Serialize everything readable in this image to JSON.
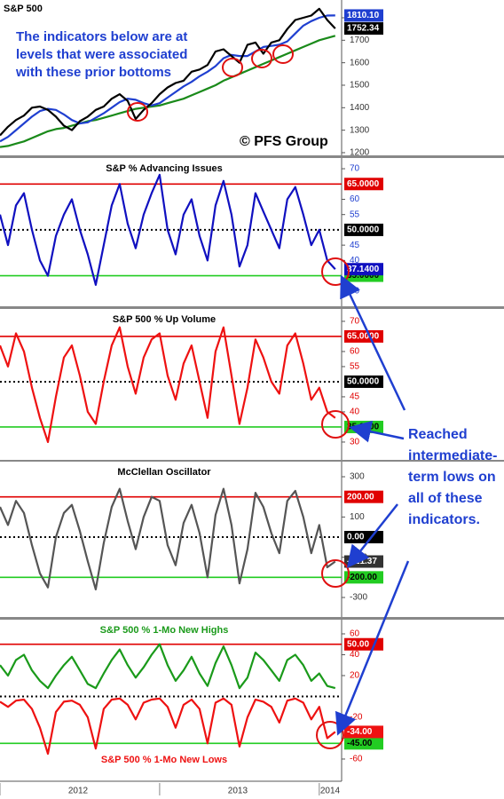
{
  "chart_data": [
    {
      "type": "line",
      "title": "S&P 500",
      "annotation": [
        "The indicators below are at",
        "levels that were associated",
        "with these prior bottoms"
      ],
      "credit": "© PFS Group",
      "axis_color": "#333333",
      "xlim": [
        2012,
        2014.14
      ],
      "ylim": [
        1188,
        1879
      ],
      "yticks": [
        1200,
        1300,
        1400,
        1500,
        1600,
        1700,
        1800
      ],
      "x": [
        2012,
        2012.05,
        2012.1,
        2012.15,
        2012.2,
        2012.25,
        2012.3,
        2012.35,
        2012.4,
        2012.45,
        2012.5,
        2012.55,
        2012.6,
        2012.65,
        2012.7,
        2012.75,
        2012.8,
        2012.85,
        2012.9,
        2012.95,
        2013,
        2013.05,
        2013.1,
        2013.15,
        2013.2,
        2013.25,
        2013.3,
        2013.35,
        2013.4,
        2013.45,
        2013.5,
        2013.55,
        2013.6,
        2013.65,
        2013.7,
        2013.75,
        2013.8,
        2013.85,
        2013.9,
        2013.95,
        2014,
        2014.05,
        2014.1
      ],
      "series": [
        {
          "color": "#1a8a1a",
          "values": [
            1225,
            1230,
            1240,
            1250,
            1265,
            1280,
            1295,
            1305,
            1310,
            1320,
            1330,
            1340,
            1345,
            1355,
            1365,
            1375,
            1385,
            1395,
            1400,
            1405,
            1410,
            1420,
            1430,
            1440,
            1455,
            1470,
            1485,
            1500,
            1520,
            1535,
            1550,
            1565,
            1580,
            1595,
            1610,
            1625,
            1640,
            1655,
            1670,
            1685,
            1700,
            1710,
            1720
          ]
        },
        {
          "color": "#1f3fd0",
          "values": [
            1250,
            1270,
            1300,
            1330,
            1360,
            1385,
            1395,
            1390,
            1370,
            1345,
            1330,
            1335,
            1355,
            1375,
            1400,
            1425,
            1440,
            1435,
            1420,
            1410,
            1420,
            1445,
            1470,
            1495,
            1515,
            1540,
            1560,
            1585,
            1620,
            1635,
            1630,
            1630,
            1650,
            1670,
            1675,
            1680,
            1695,
            1730,
            1765,
            1785,
            1800,
            1810,
            1810.1
          ],
          "end_label": "1810.10"
        },
        {
          "color": "#000000",
          "values": [
            1277,
            1315,
            1345,
            1365,
            1400,
            1405,
            1390,
            1360,
            1320,
            1300,
            1340,
            1360,
            1390,
            1405,
            1440,
            1460,
            1430,
            1350,
            1390,
            1420,
            1460,
            1490,
            1510,
            1520,
            1560,
            1570,
            1590,
            1650,
            1660,
            1630,
            1600,
            1680,
            1690,
            1640,
            1690,
            1700,
            1750,
            1790,
            1800,
            1810,
            1840,
            1790,
            1752.34
          ],
          "end_label": "1752.34"
        }
      ]
    },
    {
      "type": "line",
      "title": "S&P % Advancing Issues",
      "axis_color": "#1f3fd0",
      "xlim": [
        2012,
        2014.14
      ],
      "ylim": [
        25,
        73.5
      ],
      "yticks": [
        30,
        40,
        45,
        55,
        60,
        70
      ],
      "reference_lines": [
        {
          "value": 65,
          "label": "65.0000",
          "color": "#e00000",
          "style": "solid"
        },
        {
          "value": 50,
          "label": "50.0000",
          "color": "#000000",
          "style": "dotted"
        },
        {
          "value": 35,
          "label": "35.0000",
          "color": "#22cc22",
          "style": "solid"
        }
      ],
      "x": [
        2012,
        2012.05,
        2012.1,
        2012.15,
        2012.2,
        2012.25,
        2012.3,
        2012.35,
        2012.4,
        2012.45,
        2012.5,
        2012.55,
        2012.6,
        2012.65,
        2012.7,
        2012.75,
        2012.8,
        2012.85,
        2012.9,
        2012.95,
        2013,
        2013.05,
        2013.1,
        2013.15,
        2013.2,
        2013.25,
        2013.3,
        2013.35,
        2013.4,
        2013.45,
        2013.5,
        2013.55,
        2013.6,
        2013.65,
        2013.7,
        2013.75,
        2013.8,
        2013.85,
        2013.9,
        2013.95,
        2014,
        2014.05,
        2014.1
      ],
      "series": [
        {
          "color": "#1010c0",
          "values": [
            55,
            45,
            58,
            62,
            50,
            40,
            35,
            48,
            55,
            60,
            50,
            42,
            32,
            45,
            58,
            65,
            52,
            44,
            55,
            62,
            68,
            50,
            42,
            55,
            60,
            48,
            40,
            58,
            66,
            55,
            38,
            45,
            62,
            56,
            50,
            44,
            60,
            64,
            55,
            45,
            50,
            40,
            37.14
          ],
          "end_label": "37.1400"
        }
      ]
    },
    {
      "type": "line",
      "title": "S&P 500 % Up Volume",
      "axis_color": "#e00000",
      "xlim": [
        2012,
        2014.14
      ],
      "ylim": [
        24.1,
        74.1
      ],
      "yticks": [
        30,
        40,
        45,
        55,
        60,
        70
      ],
      "reference_lines": [
        {
          "value": 65,
          "label": "65.0000",
          "color": "#e00000",
          "style": "solid"
        },
        {
          "value": 50,
          "label": "50.0000",
          "color": "#000000",
          "style": "dotted"
        },
        {
          "value": 35,
          "label": "35.0000",
          "color": "#22cc22",
          "style": "solid"
        }
      ],
      "x": [
        2012,
        2012.05,
        2012.1,
        2012.15,
        2012.2,
        2012.25,
        2012.3,
        2012.35,
        2012.4,
        2012.45,
        2012.5,
        2012.55,
        2012.6,
        2012.65,
        2012.7,
        2012.75,
        2012.8,
        2012.85,
        2012.9,
        2012.95,
        2013,
        2013.05,
        2013.1,
        2013.15,
        2013.2,
        2013.25,
        2013.3,
        2013.35,
        2013.4,
        2013.45,
        2013.5,
        2013.55,
        2013.6,
        2013.65,
        2013.7,
        2013.75,
        2013.8,
        2013.85,
        2013.9,
        2013.95,
        2014,
        2014.05,
        2014.1
      ],
      "series": [
        {
          "color": "#ee1111",
          "values": [
            62,
            55,
            66,
            60,
            48,
            38,
            30,
            45,
            58,
            62,
            52,
            40,
            36,
            50,
            62,
            68,
            55,
            46,
            58,
            64,
            66,
            52,
            44,
            56,
            62,
            50,
            38,
            60,
            68,
            52,
            36,
            48,
            64,
            58,
            50,
            46,
            62,
            66,
            56,
            44,
            48,
            40,
            38
          ]
        }
      ]
    },
    {
      "type": "line",
      "title": "McClellan Oscillator",
      "axis_color": "#333333",
      "xlim": [
        2012,
        2014.14
      ],
      "ylim": [
        -397,
        375
      ],
      "yticks": [
        300,
        100,
        -100,
        -300
      ],
      "reference_lines": [
        {
          "value": 200,
          "label": "200.00",
          "color": "#e00000",
          "style": "solid"
        },
        {
          "value": 0,
          "label": "0.00",
          "color": "#000000",
          "style": "dotted"
        },
        {
          "value": -200,
          "label": "-200.00",
          "color": "#22cc22",
          "style": "solid"
        }
      ],
      "x": [
        2012,
        2012.05,
        2012.1,
        2012.15,
        2012.2,
        2012.25,
        2012.3,
        2012.35,
        2012.4,
        2012.45,
        2012.5,
        2012.55,
        2012.6,
        2012.65,
        2012.7,
        2012.75,
        2012.8,
        2012.85,
        2012.9,
        2012.95,
        2013,
        2013.05,
        2013.1,
        2013.15,
        2013.2,
        2013.25,
        2013.3,
        2013.35,
        2013.4,
        2013.45,
        2013.5,
        2013.55,
        2013.6,
        2013.65,
        2013.7,
        2013.75,
        2013.8,
        2013.85,
        2013.9,
        2013.95,
        2014,
        2014.05,
        2014.1
      ],
      "series": [
        {
          "color": "#555555",
          "values": [
            150,
            60,
            180,
            120,
            -40,
            -180,
            -250,
            0,
            120,
            160,
            30,
            -120,
            -260,
            -30,
            150,
            240,
            80,
            -60,
            100,
            200,
            180,
            -40,
            -140,
            70,
            160,
            20,
            -200,
            110,
            240,
            60,
            -230,
            -60,
            220,
            150,
            20,
            -80,
            180,
            230,
            100,
            -80,
            60,
            -150,
            -121.37
          ],
          "end_label": "-121.37"
        }
      ]
    },
    {
      "type": "line",
      "axis_color": "#e00000",
      "xlim": [
        2012,
        2014.14
      ],
      "ylim": [
        -81.3,
        73.6
      ],
      "yticks": [
        60,
        40,
        20,
        -20,
        -40,
        -60
      ],
      "xticks": [
        2012,
        2013,
        2014
      ],
      "reference_lines": [
        {
          "value": 50,
          "label": "50.00",
          "color": "#e00000",
          "style": "solid"
        },
        {
          "value": 0,
          "color": "#000000",
          "style": "dotted"
        },
        {
          "value": -45,
          "label": "-45.00",
          "color": "#22cc22",
          "style": "solid"
        }
      ],
      "x": [
        2012,
        2012.05,
        2012.1,
        2012.15,
        2012.2,
        2012.25,
        2012.3,
        2012.35,
        2012.4,
        2012.45,
        2012.5,
        2012.55,
        2012.6,
        2012.65,
        2012.7,
        2012.75,
        2012.8,
        2012.85,
        2012.9,
        2012.95,
        2013,
        2013.05,
        2013.1,
        2013.15,
        2013.2,
        2013.25,
        2013.3,
        2013.35,
        2013.4,
        2013.45,
        2013.5,
        2013.55,
        2013.6,
        2013.65,
        2013.7,
        2013.75,
        2013.8,
        2013.85,
        2013.9,
        2013.95,
        2014,
        2014.05,
        2014.1
      ],
      "series": [
        {
          "name": "S&P 500 % 1-Mo New Highs",
          "color": "#1a9a1a",
          "values": [
            30,
            20,
            35,
            40,
            25,
            15,
            8,
            20,
            30,
            38,
            25,
            12,
            8,
            22,
            35,
            45,
            30,
            18,
            28,
            40,
            50,
            30,
            15,
            25,
            38,
            22,
            10,
            32,
            48,
            30,
            8,
            18,
            42,
            35,
            25,
            15,
            35,
            40,
            30,
            15,
            22,
            10,
            8
          ]
        },
        {
          "name": "S&P 500 % 1-Mo New Lows",
          "color": "#ee1111",
          "values": [
            -5,
            -10,
            -4,
            -3,
            -12,
            -30,
            -55,
            -15,
            -5,
            -4,
            -8,
            -20,
            -50,
            -12,
            -3,
            -2,
            -8,
            -22,
            -6,
            -3,
            -2,
            -10,
            -30,
            -8,
            -3,
            -12,
            -45,
            -6,
            -2,
            -8,
            -48,
            -20,
            -3,
            -5,
            -10,
            -25,
            -4,
            -2,
            -6,
            -22,
            -10,
            -40,
            -34
          ],
          "end_label": "-34.00"
        }
      ]
    }
  ],
  "callout": [
    "Reached",
    "intermediate-",
    "term lows on",
    "all of these",
    "indicators."
  ]
}
